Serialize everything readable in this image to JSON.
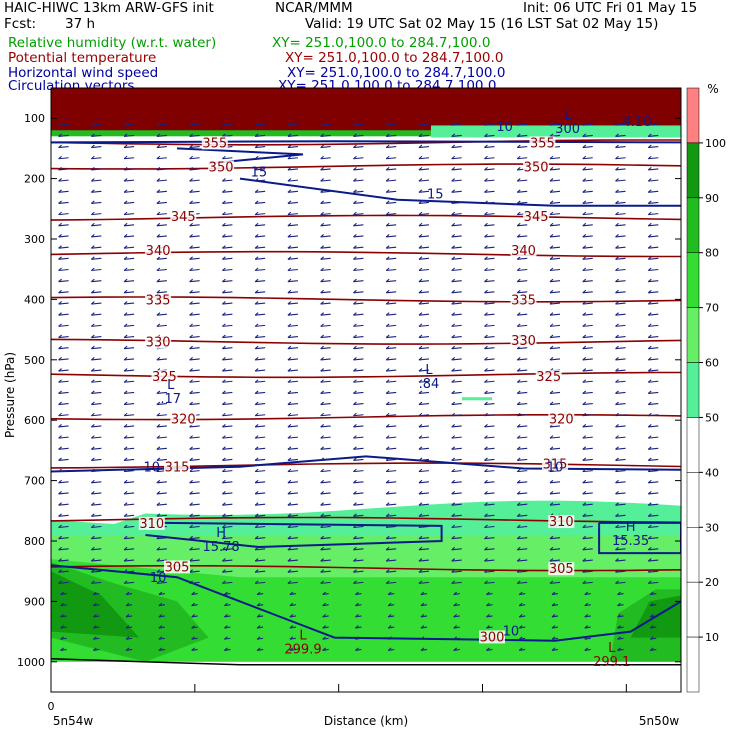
{
  "header": {
    "model": "HAIC-HIWC 13km ARW-GFS init",
    "org": "NCAR/MMM",
    "init": "Init: 06 UTC Fri 01 May 15",
    "fcst_label": "Fcst:",
    "fcst_value": "37 h",
    "valid": "Valid: 19 UTC Sat 02 May 15 (16 LST Sat 02 May 15)"
  },
  "fields": [
    {
      "name": "Relative humidity (w.r.t. water)",
      "xy": "XY= 251.0,100.0 to 284.7,100.0",
      "color": "#00a000"
    },
    {
      "name": "Potential temperature",
      "xy": "XY= 251.0,100.0 to 284.7,100.0",
      "color": "#9a0000"
    },
    {
      "name": "Horizontal wind speed",
      "xy": "XY= 251.0,100.0 to 284.7,100.0",
      "color": "#0000a0"
    },
    {
      "name": "Circulation vectors",
      "xy": "XY= 251.0,100.0 to 284.7,100.0",
      "color": "#0000a0"
    }
  ],
  "chart_data": {
    "type": "cross-section",
    "xlabel": "Distance (km)",
    "ylabel": "Pressure (hPa)",
    "x_tick_labels": [
      "0"
    ],
    "x_end_labels": [
      "5n54w",
      "5n50w"
    ],
    "y_scale": "linear",
    "ylim": [
      1050,
      50
    ],
    "y_ticks": [
      100,
      200,
      300,
      400,
      500,
      600,
      700,
      800,
      900,
      1000
    ],
    "colorbar": {
      "unit": "%",
      "levels": [
        10,
        20,
        30,
        40,
        50,
        60,
        70,
        80,
        90,
        100
      ],
      "colors": {
        "50-60": "#55ee99",
        "60-70": "#66ee66",
        "70-80": "#33dd33",
        "80-90": "#22bb22",
        "90-100": "#119911",
        "100+": "#ff8080"
      }
    },
    "theta_contours": [
      {
        "value": 355,
        "p": 140
      },
      {
        "value": 350,
        "p": 180
      },
      {
        "value": 345,
        "p": 265
      },
      {
        "value": 340,
        "p": 325
      },
      {
        "value": 335,
        "p": 400
      },
      {
        "value": 330,
        "p": 470
      },
      {
        "value": 325,
        "p": 525
      },
      {
        "value": 320,
        "p": 595
      },
      {
        "value": 315,
        "p": 675
      },
      {
        "value": 310,
        "p": 765
      },
      {
        "value": 305,
        "p": 845
      }
    ],
    "theta_labels": [
      {
        "text": "355",
        "x": 0.26,
        "p": 140
      },
      {
        "text": "355",
        "x": 0.78,
        "p": 140
      },
      {
        "text": "350",
        "x": 0.27,
        "p": 180
      },
      {
        "text": "350",
        "x": 0.77,
        "p": 180
      },
      {
        "text": "345",
        "x": 0.21,
        "p": 262
      },
      {
        "text": "345",
        "x": 0.77,
        "p": 262
      },
      {
        "text": "340",
        "x": 0.17,
        "p": 318
      },
      {
        "text": "340",
        "x": 0.75,
        "p": 318
      },
      {
        "text": "335",
        "x": 0.17,
        "p": 400
      },
      {
        "text": "335",
        "x": 0.75,
        "p": 400
      },
      {
        "text": "330",
        "x": 0.17,
        "p": 470
      },
      {
        "text": "330",
        "x": 0.75,
        "p": 467
      },
      {
        "text": "325",
        "x": 0.18,
        "p": 527
      },
      {
        "text": "325",
        "x": 0.79,
        "p": 527
      },
      {
        "text": "320",
        "x": 0.21,
        "p": 597
      },
      {
        "text": "320",
        "x": 0.81,
        "p": 597
      },
      {
        "text": "315",
        "x": 0.2,
        "p": 677
      },
      {
        "text": "315",
        "x": 0.8,
        "p": 672
      },
      {
        "text": "310",
        "x": 0.16,
        "p": 770
      },
      {
        "text": "310",
        "x": 0.81,
        "p": 767
      },
      {
        "text": "305",
        "x": 0.2,
        "p": 842
      },
      {
        "text": "305",
        "x": 0.81,
        "p": 845
      },
      {
        "text": "300",
        "x": 0.7,
        "p": 958
      }
    ],
    "wind_labels": [
      {
        "text": "15",
        "x": 0.33,
        "p": 188
      },
      {
        "text": "15",
        "x": 0.61,
        "p": 225
      },
      {
        "text": "10",
        "x": 0.16,
        "p": 677
      },
      {
        "text": "10",
        "x": 0.8,
        "p": 677
      },
      {
        "text": "10",
        "x": 0.17,
        "p": 860
      },
      {
        "text": "10",
        "x": 0.73,
        "p": 948
      },
      {
        "text": "10",
        "x": 0.72,
        "p": 113
      },
      {
        "text": "4.10",
        "x": 0.93,
        "p": 105
      }
    ],
    "extrema": [
      {
        "kind": "L",
        "value": ".17",
        "x": 0.19,
        "p": 565
      },
      {
        "kind": "L",
        "value": ".84",
        "x": 0.6,
        "p": 540
      },
      {
        "kind": "H",
        "value": "15.78",
        "x": 0.27,
        "p": 810
      },
      {
        "kind": "H",
        "value": "15.35",
        "x": 0.92,
        "p": 800
      },
      {
        "kind": "L",
        "value": "299.9",
        "x": 0.4,
        "p": 980
      },
      {
        "kind": "L",
        "value": "299.1",
        "x": 0.89,
        "p": 1000
      },
      {
        "kind": "L",
        "value": "300",
        "x": 0.82,
        "p": 118
      }
    ]
  }
}
